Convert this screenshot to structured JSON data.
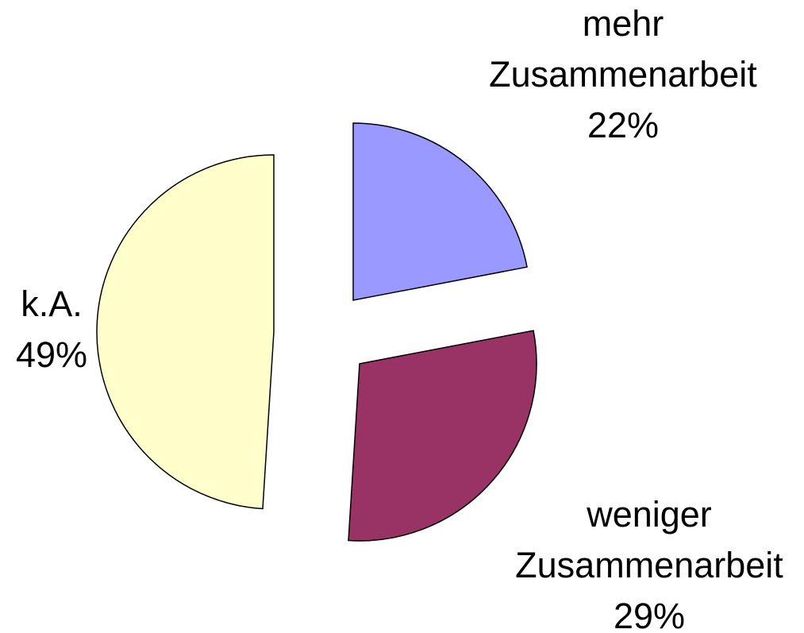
{
  "chart_data": {
    "type": "pie",
    "categories": [
      "mehr Zusammenarbeit",
      "weniger Zusammenarbeit",
      "k.A."
    ],
    "values": [
      22,
      29,
      49
    ],
    "value_labels": [
      "22%",
      "29%",
      "49%"
    ],
    "colors": [
      "#9999ff",
      "#993366",
      "#ffffcc"
    ]
  }
}
